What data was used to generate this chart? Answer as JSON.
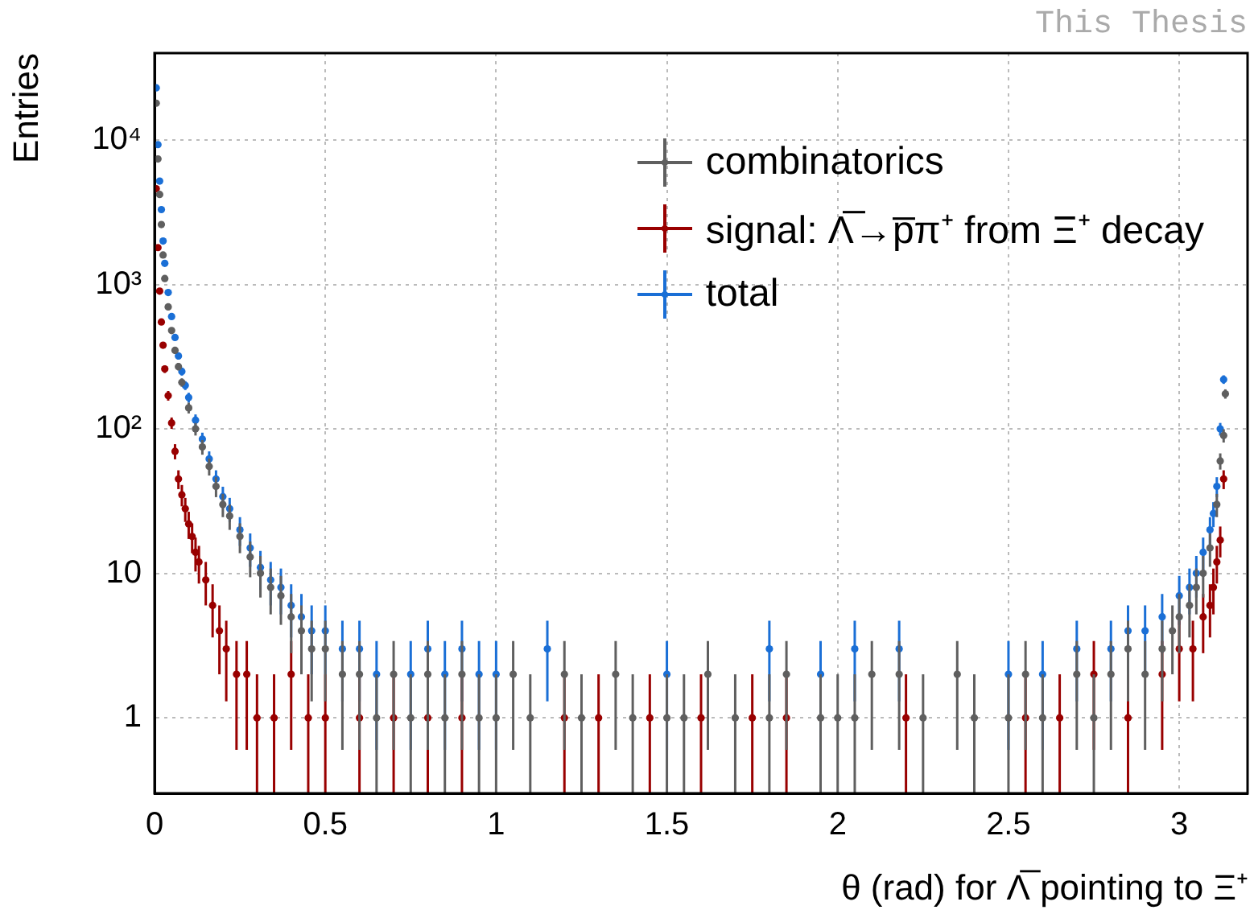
{
  "chart_data": {
    "type": "scatter",
    "xlabel": "θ (rad) for Λ̅ pointing to Ξ⁺",
    "ylabel": "Entries",
    "annotations": [
      "This Thesis"
    ],
    "log": "y",
    "grid": true,
    "legend": "top right",
    "marker": "circle",
    "xlim": [
      0,
      3.2
    ],
    "xticks": [
      0,
      0.5,
      1,
      1.5,
      2,
      2.5,
      3
    ],
    "ylim": [
      0.3,
      40000
    ],
    "yticks": [
      1,
      10,
      {
        "value": 100,
        "label": "10²"
      },
      {
        "value": 1000,
        "label": "10³"
      },
      {
        "value": 10000,
        "label": "10⁴"
      }
    ],
    "series": [
      {
        "name": "combinatorics",
        "color": "#5f5f5f",
        "x": [
          0.005,
          0.01,
          0.015,
          0.02,
          0.025,
          0.03,
          0.04,
          0.05,
          0.06,
          0.07,
          0.08,
          0.1,
          0.12,
          0.14,
          0.16,
          0.18,
          0.2,
          0.22,
          0.25,
          0.28,
          0.31,
          0.34,
          0.37,
          0.4,
          0.43,
          0.46,
          0.5,
          0.55,
          0.6,
          0.65,
          0.7,
          0.75,
          0.8,
          0.85,
          0.9,
          0.95,
          1.0,
          1.05,
          1.1,
          1.2,
          1.25,
          1.35,
          1.4,
          1.5,
          1.55,
          1.62,
          1.7,
          1.8,
          1.85,
          1.95,
          2.0,
          2.05,
          2.1,
          2.18,
          2.25,
          2.35,
          2.4,
          2.5,
          2.55,
          2.6,
          2.7,
          2.75,
          2.8,
          2.85,
          2.9,
          2.95,
          2.98,
          3.0,
          3.03,
          3.05,
          3.07,
          3.09,
          3.11,
          3.12,
          3.13,
          3.135
        ],
        "values": [
          18000,
          7400,
          4200,
          2600,
          1600,
          1100,
          700,
          480,
          350,
          270,
          210,
          140,
          100,
          75,
          55,
          40,
          30,
          25,
          18,
          13,
          10,
          8,
          7,
          5,
          4,
          3,
          3,
          2,
          2,
          1,
          2,
          1,
          2,
          1,
          2,
          1,
          1,
          2,
          1,
          2,
          1,
          2,
          1,
          1,
          1,
          2,
          1,
          1,
          2,
          1,
          1,
          1,
          2,
          2,
          1,
          2,
          1,
          1,
          2,
          1,
          2,
          1,
          2,
          3,
          2,
          3,
          4,
          5,
          6,
          8,
          10,
          15,
          30,
          60,
          90,
          175
        ],
        "errors": [
          134,
          86,
          65,
          51,
          40,
          33,
          26,
          22,
          19,
          16,
          14,
          12,
          10,
          8.7,
          7.4,
          6.3,
          5.5,
          5,
          4.2,
          3.6,
          3.2,
          2.8,
          2.6,
          2.2,
          2,
          1.7,
          1.7,
          1.4,
          1.4,
          [
            0.3,
            2
          ],
          1.4,
          [
            0.3,
            2
          ],
          1.4,
          [
            0.3,
            2
          ],
          1.4,
          [
            0.3,
            2
          ],
          [
            0.3,
            2
          ],
          1.4,
          [
            0.3,
            2
          ],
          1.4,
          [
            0.3,
            2
          ],
          1.4,
          [
            0.3,
            2
          ],
          [
            0.3,
            2
          ],
          [
            0.3,
            2
          ],
          1.4,
          [
            0.3,
            2
          ],
          [
            0.3,
            2
          ],
          1.4,
          [
            0.3,
            2
          ],
          [
            0.3,
            2
          ],
          [
            0.3,
            2
          ],
          1.4,
          1.4,
          [
            0.3,
            2
          ],
          1.4,
          [
            0.3,
            2
          ],
          [
            0.3,
            2
          ],
          1.4,
          [
            0.3,
            2
          ],
          1.4,
          [
            0.3,
            2
          ],
          1.4,
          1.7,
          1.4,
          1.7,
          2,
          2.2,
          2.4,
          2.8,
          3.2,
          3.9,
          5.5,
          7.7,
          9.5,
          13
        ]
      },
      {
        "name": "signal: Λ̅→p̅π⁺ from Ξ⁺ decay",
        "color": "#990000",
        "x": [
          0.005,
          0.01,
          0.015,
          0.02,
          0.025,
          0.03,
          0.04,
          0.05,
          0.06,
          0.07,
          0.08,
          0.09,
          0.1,
          0.11,
          0.12,
          0.13,
          0.15,
          0.17,
          0.19,
          0.21,
          0.24,
          0.27,
          0.3,
          0.35,
          0.4,
          0.45,
          0.5,
          0.6,
          0.7,
          0.8,
          0.9,
          1.0,
          1.2,
          1.3,
          1.45,
          1.6,
          1.75,
          1.85,
          2.05,
          2.2,
          2.4,
          2.55,
          2.65,
          2.75,
          2.85,
          2.9,
          2.95,
          3.0,
          3.04,
          3.07,
          3.09,
          3.1,
          3.11,
          3.12,
          3.13
        ],
        "values": [
          4600,
          1800,
          900,
          550,
          380,
          260,
          170,
          110,
          70,
          45,
          35,
          28,
          22,
          18,
          14,
          12,
          9,
          6,
          4,
          3,
          2,
          2,
          1,
          1,
          2,
          1,
          1,
          1,
          1,
          1,
          1,
          null,
          1,
          1,
          1,
          1,
          1,
          1,
          null,
          1,
          null,
          1,
          1,
          2,
          1,
          null,
          2,
          3,
          3,
          5,
          6,
          8,
          12,
          17,
          45
        ],
        "errors": [
          68,
          42,
          30,
          23,
          19,
          16,
          13,
          10,
          8.4,
          6.7,
          5.9,
          5.3,
          4.7,
          4.2,
          3.7,
          3.5,
          3,
          2.4,
          2,
          1.7,
          1.4,
          1.4,
          [
            0.3,
            2
          ],
          [
            0.3,
            2
          ],
          1.4,
          [
            0.3,
            2
          ],
          [
            0.3,
            2
          ],
          [
            0.3,
            2
          ],
          [
            0.3,
            2
          ],
          [
            0.3,
            2
          ],
          [
            0.3,
            2
          ],
          null,
          [
            0.3,
            2
          ],
          [
            0.3,
            2
          ],
          [
            0.3,
            2
          ],
          [
            0.3,
            2
          ],
          [
            0.3,
            2
          ],
          [
            0.3,
            2
          ],
          null,
          [
            0.3,
            2
          ],
          null,
          [
            0.3,
            2
          ],
          [
            0.3,
            2
          ],
          1.4,
          [
            0.3,
            2
          ],
          null,
          1.4,
          1.7,
          1.7,
          2.2,
          2.4,
          2.8,
          3.5,
          4.1,
          6.7
        ]
      },
      {
        "name": "total",
        "color": "#1a6fd6",
        "x": [
          0.005,
          0.01,
          0.015,
          0.02,
          0.025,
          0.03,
          0.04,
          0.05,
          0.06,
          0.07,
          0.08,
          0.09,
          0.1,
          0.12,
          0.14,
          0.16,
          0.18,
          0.2,
          0.22,
          0.25,
          0.28,
          0.31,
          0.34,
          0.37,
          0.4,
          0.43,
          0.46,
          0.5,
          0.55,
          0.6,
          0.65,
          0.7,
          0.75,
          0.8,
          0.85,
          0.9,
          0.95,
          1.0,
          1.05,
          1.15,
          1.2,
          1.35,
          1.5,
          1.62,
          1.8,
          1.85,
          1.95,
          2.05,
          2.1,
          2.18,
          2.35,
          2.5,
          2.6,
          2.7,
          2.8,
          2.85,
          2.9,
          2.95,
          3.0,
          3.03,
          3.05,
          3.07,
          3.09,
          3.1,
          3.11,
          3.12,
          3.13
        ],
        "values": [
          23000,
          9300,
          5200,
          3300,
          2000,
          1400,
          880,
          600,
          430,
          320,
          250,
          200,
          165,
          115,
          85,
          62,
          45,
          34,
          28,
          20,
          15,
          11,
          9,
          8,
          6,
          5,
          4,
          4,
          3,
          3,
          2,
          null,
          2,
          3,
          2,
          3,
          2,
          2,
          null,
          3,
          null,
          null,
          2,
          null,
          3,
          null,
          2,
          3,
          null,
          3,
          null,
          2,
          2,
          3,
          3,
          4,
          4,
          5,
          7,
          8,
          10,
          14,
          20,
          26,
          40,
          100,
          220
        ],
        "errors": [
          152,
          96,
          72,
          57,
          45,
          37,
          30,
          24,
          21,
          18,
          16,
          14,
          13,
          11,
          9.2,
          7.9,
          6.7,
          5.8,
          5.3,
          4.5,
          3.9,
          3.3,
          3,
          2.8,
          2.4,
          2.2,
          2,
          2,
          1.7,
          1.7,
          1.4,
          null,
          1.4,
          1.7,
          1.4,
          1.7,
          1.4,
          1.4,
          null,
          1.7,
          null,
          null,
          1.4,
          null,
          1.7,
          null,
          1.4,
          1.7,
          null,
          1.7,
          null,
          1.4,
          1.4,
          1.7,
          1.7,
          2,
          2,
          2.2,
          2.6,
          2.8,
          3.2,
          3.7,
          4.5,
          5.1,
          6.3,
          10,
          15
        ]
      }
    ]
  }
}
